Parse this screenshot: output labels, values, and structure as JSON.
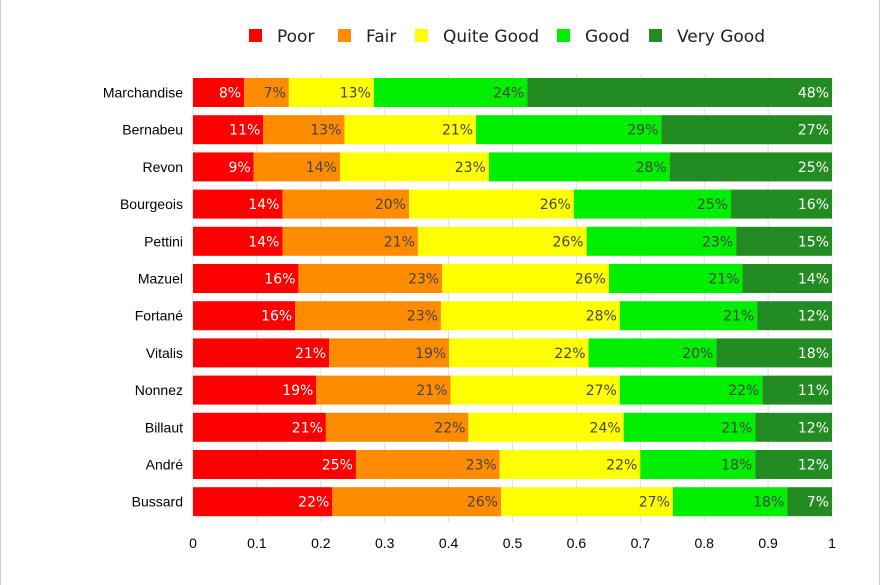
{
  "chart_data": {
    "type": "bar",
    "orientation": "horizontal",
    "stacked": true,
    "title": "",
    "xlabel": "",
    "ylabel": "",
    "xlim": [
      0,
      1
    ],
    "x_ticks": [
      "0",
      "0.1",
      "0.2",
      "0.3",
      "0.4",
      "0.5",
      "0.6",
      "0.7",
      "0.8",
      "0.9",
      "1"
    ],
    "grid": "vertical",
    "legend_position": "top",
    "categories": [
      "Marchandise",
      "Bernabeu",
      "Revon",
      "Bourgeois",
      "Pettini",
      "Mazuel",
      "Fortané",
      "Vitalis",
      "Nonnez",
      "Billaut",
      "André",
      "Bussard"
    ],
    "series": [
      {
        "name": "Poor",
        "color": "#ff0000",
        "label_color": "#ffffff",
        "values": [
          0.08,
          0.11,
          0.095,
          0.14,
          0.14,
          0.165,
          0.16,
          0.213,
          0.193,
          0.208,
          0.255,
          0.218
        ],
        "labels": [
          "8%",
          "11%",
          "9%",
          "14%",
          "14%",
          "16%",
          "16%",
          "21%",
          "19%",
          "21%",
          "25%",
          "22%"
        ]
      },
      {
        "name": "Fair",
        "color": "#ff8c00",
        "label_color": "#444444",
        "values": [
          0.07,
          0.127,
          0.135,
          0.198,
          0.212,
          0.225,
          0.228,
          0.188,
          0.21,
          0.223,
          0.225,
          0.264
        ],
        "labels": [
          "7%",
          "13%",
          "14%",
          "20%",
          "21%",
          "23%",
          "23%",
          "19%",
          "21%",
          "22%",
          "23%",
          "26%"
        ]
      },
      {
        "name": "Quite Good",
        "color": "#ffff00",
        "label_color": "#444444",
        "values": [
          0.133,
          0.206,
          0.233,
          0.258,
          0.264,
          0.261,
          0.28,
          0.218,
          0.265,
          0.243,
          0.22,
          0.269
        ],
        "labels": [
          "13%",
          "21%",
          "23%",
          "26%",
          "26%",
          "26%",
          "28%",
          "22%",
          "27%",
          "24%",
          "22%",
          "27%"
        ]
      },
      {
        "name": "Good",
        "color": "#00ee00",
        "label_color": "#444444",
        "values": [
          0.24,
          0.29,
          0.283,
          0.246,
          0.234,
          0.209,
          0.215,
          0.2,
          0.223,
          0.206,
          0.18,
          0.179
        ],
        "labels": [
          "24%",
          "29%",
          "28%",
          "25%",
          "23%",
          "21%",
          "21%",
          "20%",
          "22%",
          "21%",
          "18%",
          "18%"
        ]
      },
      {
        "name": "Very Good",
        "color": "#228b22",
        "label_color": "#ffffff",
        "values": [
          0.477,
          0.267,
          0.254,
          0.158,
          0.15,
          0.14,
          0.117,
          0.181,
          0.109,
          0.12,
          0.12,
          0.07
        ],
        "labels": [
          "48%",
          "27%",
          "25%",
          "16%",
          "15%",
          "14%",
          "12%",
          "18%",
          "11%",
          "12%",
          "12%",
          "7%"
        ]
      }
    ]
  }
}
